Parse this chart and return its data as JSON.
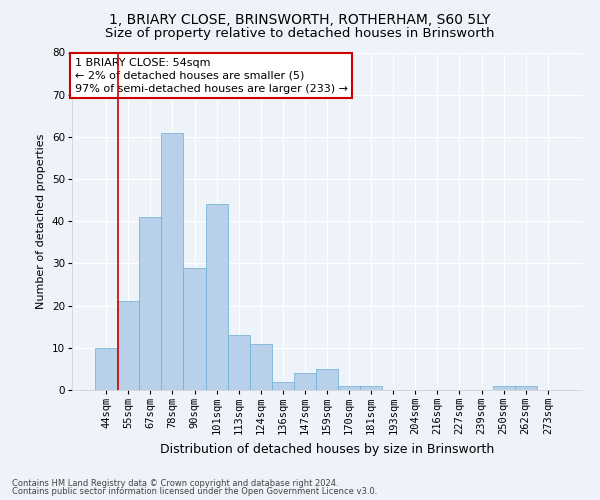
{
  "title1": "1, BRIARY CLOSE, BRINSWORTH, ROTHERHAM, S60 5LY",
  "title2": "Size of property relative to detached houses in Brinsworth",
  "xlabel": "Distribution of detached houses by size in Brinsworth",
  "ylabel": "Number of detached properties",
  "footnote1": "Contains HM Land Registry data © Crown copyright and database right 2024.",
  "footnote2": "Contains public sector information licensed under the Open Government Licence v3.0.",
  "bar_labels": [
    "44sqm",
    "55sqm",
    "67sqm",
    "78sqm",
    "90sqm",
    "101sqm",
    "113sqm",
    "124sqm",
    "136sqm",
    "147sqm",
    "159sqm",
    "170sqm",
    "181sqm",
    "193sqm",
    "204sqm",
    "216sqm",
    "227sqm",
    "239sqm",
    "250sqm",
    "262sqm",
    "273sqm"
  ],
  "bar_values": [
    10,
    21,
    41,
    61,
    29,
    44,
    13,
    11,
    2,
    4,
    5,
    1,
    1,
    0,
    0,
    0,
    0,
    0,
    1,
    1,
    0
  ],
  "bar_color": "#b8d0ea",
  "bar_edge_color": "#6aaed6",
  "ylim": [
    0,
    80
  ],
  "yticks": [
    0,
    10,
    20,
    30,
    40,
    50,
    60,
    70,
    80
  ],
  "vline_x_index": 0.52,
  "annotation_text": "1 BRIARY CLOSE: 54sqm\n← 2% of detached houses are smaller (5)\n97% of semi-detached houses are larger (233) →",
  "annotation_box_color": "#ffffff",
  "annotation_box_edgecolor": "#cc0000",
  "bg_color": "#eef2f9",
  "grid_color": "#ffffff",
  "title1_fontsize": 10,
  "title2_fontsize": 9.5,
  "xlabel_fontsize": 9,
  "ylabel_fontsize": 8,
  "tick_fontsize": 7.5,
  "annotation_fontsize": 8
}
